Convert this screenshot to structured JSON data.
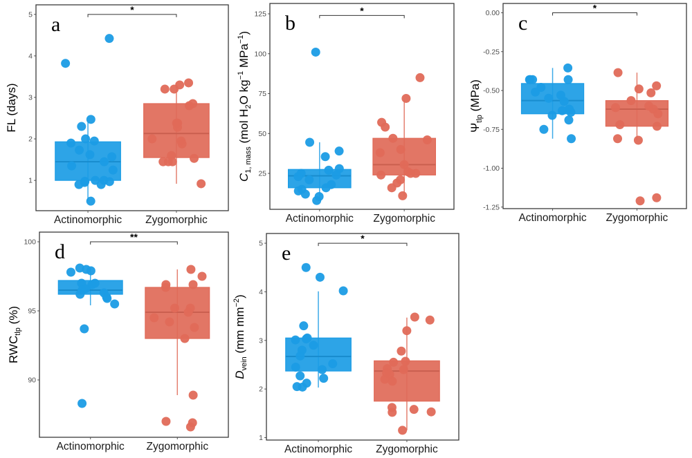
{
  "figure": {
    "categories": [
      "Actinomorphic",
      "Zygomorphic"
    ],
    "colors": {
      "Actinomorphic": "#1b9ce5",
      "Zygomorphic": "#e06a58"
    }
  },
  "chart_data": [
    {
      "id": "a",
      "type": "boxplot",
      "panel_label": "a",
      "ylabel": "FL (days)",
      "ylabel_parts": [
        {
          "t": "FL (days)",
          "s": "n"
        }
      ],
      "yticks": [
        1,
        2,
        3,
        4,
        5
      ],
      "ytick_labels": [
        "1",
        "2",
        "3",
        "4",
        "5"
      ],
      "ylim": [
        0.27,
        5.23
      ],
      "significance": "*",
      "sig_y": 5.0,
      "categories": [
        "Actinomorphic",
        "Zygomorphic"
      ],
      "series": [
        {
          "name": "Actinomorphic",
          "box": {
            "q1": 1.0,
            "median": 1.45,
            "q3": 1.93,
            "whisker_low": 0.5,
            "whisker_high": 2.45
          },
          "points": [
            4.42,
            3.82,
            2.47,
            2.3,
            2.0,
            1.95,
            1.9,
            1.73,
            1.62,
            1.57,
            1.45,
            1.35,
            1.25,
            1.0,
            0.98,
            0.97,
            0.95,
            1.0,
            0.9,
            0.9,
            0.5
          ]
        },
        {
          "name": "Zygomorphic",
          "box": {
            "q1": 1.55,
            "median": 2.13,
            "q3": 2.85,
            "whisker_low": 0.92,
            "whisker_high": 3.35
          },
          "points": [
            3.35,
            3.3,
            3.2,
            3.2,
            2.85,
            2.8,
            2.38,
            2.38,
            2.28,
            2.0,
            1.95,
            1.88,
            1.6,
            1.53,
            1.45,
            1.45,
            1.45,
            0.92
          ]
        }
      ]
    },
    {
      "id": "b",
      "type": "boxplot",
      "panel_label": "b",
      "ylabel": "C1, mass (mol H2O kg−1 MPa−1)",
      "ylabel_parts": [
        {
          "t": "C",
          "s": "i"
        },
        {
          "t": "1, mass",
          "s": "sub"
        },
        {
          "t": " (mol H",
          "s": "n"
        },
        {
          "t": "2",
          "s": "sub"
        },
        {
          "t": "O kg",
          "s": "n"
        },
        {
          "t": "−1",
          "s": "sup"
        },
        {
          "t": " MPa",
          "s": "n"
        },
        {
          "t": "−1",
          "s": "sup"
        },
        {
          "t": ")",
          "s": "n"
        }
      ],
      "yticks": [
        25,
        50,
        75,
        100,
        125
      ],
      "ytick_labels": [
        "25",
        "50",
        "75",
        "100",
        "125"
      ],
      "ylim": [
        2.5,
        131.5
      ],
      "significance": "*",
      "sig_y": 124,
      "categories": [
        "Actinomorphic",
        "Zygomorphic"
      ],
      "series": [
        {
          "name": "Actinomorphic",
          "box": {
            "q1": 16,
            "median": 23.5,
            "q3": 27.5,
            "whisker_low": 8,
            "whisker_high": 44.5
          },
          "points": [
            101,
            44.5,
            39,
            35.5,
            28,
            27,
            25,
            24,
            23,
            21,
            18,
            16,
            15,
            14,
            12,
            10.5,
            8
          ]
        },
        {
          "name": "Zygomorphic",
          "box": {
            "q1": 24,
            "median": 30.5,
            "q3": 47,
            "whisker_low": 11,
            "whisker_high": 71
          },
          "points": [
            85,
            72,
            57,
            54,
            47,
            46,
            40,
            38,
            30.5,
            26,
            25,
            25,
            24,
            21,
            19,
            16,
            11
          ]
        }
      ]
    },
    {
      "id": "c",
      "type": "boxplot",
      "panel_label": "c",
      "ylabel": "Ψtlp (MPa)",
      "ylabel_parts": [
        {
          "t": "Ψ",
          "s": "n"
        },
        {
          "t": "tlp",
          "s": "sub"
        },
        {
          "t": " (MPa)",
          "s": "n"
        }
      ],
      "yticks": [
        -1.25,
        -1.0,
        -0.75,
        -0.5,
        -0.25,
        0.0
      ],
      "ytick_labels": [
        "-1.25",
        "-1.00",
        "-0.75",
        "-0.50",
        "-0.25",
        "0.00"
      ],
      "ylim": [
        -1.26,
        0.06
      ],
      "significance": "*",
      "sig_y": 0.0,
      "categories": [
        "Actinomorphic",
        "Zygomorphic"
      ],
      "series": [
        {
          "name": "Actinomorphic",
          "box": {
            "q1": -0.65,
            "median": -0.565,
            "q3": -0.455,
            "whisker_low": -0.81,
            "whisker_high": -0.355
          },
          "points": [
            -0.355,
            -0.43,
            -0.43,
            -0.43,
            -0.43,
            -0.48,
            -0.51,
            -0.53,
            -0.55,
            -0.57,
            -0.62,
            -0.63,
            -0.64,
            -0.66,
            -0.69,
            -0.75,
            -0.81
          ]
        },
        {
          "name": "Zygomorphic",
          "box": {
            "q1": -0.73,
            "median": -0.62,
            "q3": -0.565,
            "whisker_low": -0.82,
            "whisker_high": -0.385
          },
          "points": [
            -0.385,
            -0.47,
            -0.49,
            -0.515,
            -0.565,
            -0.6,
            -0.61,
            -0.62,
            -0.65,
            -0.72,
            -0.73,
            -0.81,
            -0.82,
            -1.19,
            -1.21
          ]
        }
      ]
    },
    {
      "id": "d",
      "type": "boxplot",
      "panel_label": "d",
      "ylabel": "RWCtlp (%)",
      "ylabel_parts": [
        {
          "t": "RWC",
          "s": "n"
        },
        {
          "t": "tlp",
          "s": "sub"
        },
        {
          "t": " (%)",
          "s": "n"
        }
      ],
      "yticks": [
        90,
        95,
        100
      ],
      "ytick_labels": [
        "90",
        "95",
        "100"
      ],
      "ylim": [
        85.85,
        100.7
      ],
      "significance": "**",
      "sig_y": 100,
      "categories": [
        "Actinomorphic",
        "Zygomorphic"
      ],
      "series": [
        {
          "name": "Actinomorphic",
          "box": {
            "q1": 96.2,
            "median": 96.5,
            "q3": 97.2,
            "whisker_low": 95.4,
            "whisker_high": 98.1
          },
          "points": [
            98.1,
            98.0,
            97.9,
            97.8,
            97.0,
            97.0,
            96.9,
            96.6,
            96.5,
            96.3,
            96.2,
            96.0,
            95.9,
            95.5,
            93.7,
            88.3
          ]
        },
        {
          "name": "Zygomorphic",
          "box": {
            "q1": 93.0,
            "median": 94.9,
            "q3": 96.7,
            "whisker_low": 88.9,
            "whisker_high": 98.0
          },
          "points": [
            98.0,
            97.5,
            96.9,
            96.9,
            96.7,
            95.2,
            95.2,
            94.9,
            94.5,
            94.2,
            93.8,
            93.0,
            88.9,
            87.0,
            86.9,
            86.6
          ]
        }
      ]
    },
    {
      "id": "e",
      "type": "boxplot",
      "panel_label": "e",
      "ylabel": "Dvein (mm mm−2)",
      "ylabel_parts": [
        {
          "t": "D",
          "s": "i"
        },
        {
          "t": "vein",
          "s": "sub"
        },
        {
          "t": " (mm mm",
          "s": "n"
        },
        {
          "t": "−2",
          "s": "sup"
        },
        {
          "t": ")",
          "s": "n"
        }
      ],
      "yticks": [
        1,
        2,
        3,
        4,
        5
      ],
      "ytick_labels": [
        "1",
        "2",
        "3",
        "4",
        "5"
      ],
      "ylim": [
        0.95,
        5.2
      ],
      "significance": "*",
      "sig_y": 5.0,
      "categories": [
        "Actinomorphic",
        "Zygomorphic"
      ],
      "series": [
        {
          "name": "Actinomorphic",
          "box": {
            "q1": 2.37,
            "median": 2.67,
            "q3": 3.05,
            "whisker_low": 2.03,
            "whisker_high": 4.01
          },
          "points": [
            4.5,
            4.3,
            4.02,
            3.3,
            3.05,
            3.03,
            3.01,
            2.9,
            2.8,
            2.68,
            2.52,
            2.45,
            2.4,
            2.27,
            2.22,
            2.12,
            2.05,
            2.04
          ]
        },
        {
          "name": "Zygomorphic",
          "box": {
            "q1": 1.75,
            "median": 2.37,
            "q3": 2.58,
            "whisker_low": 1.15,
            "whisker_high": 3.47
          },
          "points": [
            3.48,
            3.42,
            3.2,
            2.78,
            2.57,
            2.55,
            2.42,
            2.4,
            2.33,
            2.3,
            2.2,
            2.16,
            1.62,
            1.58,
            1.53,
            1.52,
            1.15
          ]
        }
      ]
    }
  ]
}
